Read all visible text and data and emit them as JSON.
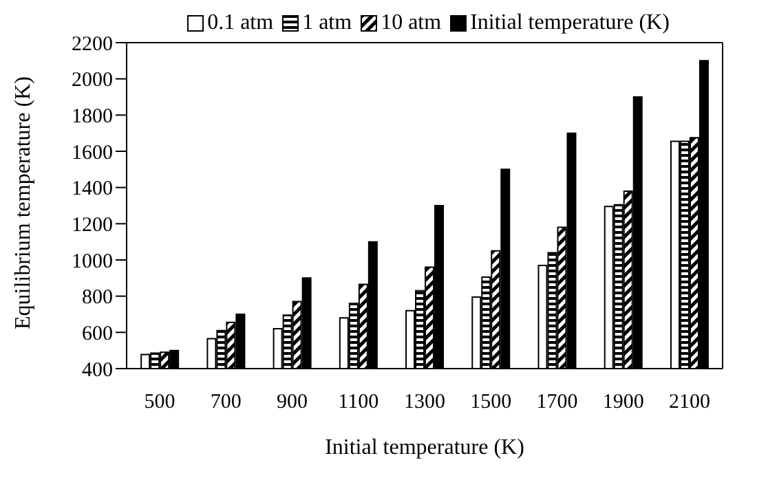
{
  "chart_data": {
    "type": "bar",
    "xlabel": "Initial temperature (K)",
    "ylabel": "Equilibrium temperature (K)",
    "categories": [
      "500",
      "700",
      "900",
      "1100",
      "1300",
      "1500",
      "1700",
      "1900",
      "2100"
    ],
    "series": [
      {
        "name": "0.1 atm",
        "color": "#ffffff",
        "values": [
          478,
          565,
          620,
          680,
          720,
          795,
          970,
          1295,
          1655
        ]
      },
      {
        "name": "1 atm",
        "color": "#000000",
        "values": [
          485,
          610,
          695,
          760,
          830,
          905,
          1040,
          1305,
          1655
        ]
      },
      {
        "name": "10 atm",
        "color": "#000000",
        "values": [
          490,
          655,
          770,
          865,
          960,
          1050,
          1180,
          1380,
          1675
        ]
      },
      {
        "name": "Initial temperature (K)",
        "color": "#000000",
        "values": [
          500,
          700,
          900,
          1100,
          1300,
          1500,
          1700,
          1900,
          2100
        ]
      }
    ],
    "ylim": [
      400,
      2200
    ],
    "yticks": [
      400,
      600,
      800,
      1000,
      1200,
      1400,
      1600,
      1800,
      2000,
      2200
    ],
    "grid": false,
    "legend": "top"
  }
}
